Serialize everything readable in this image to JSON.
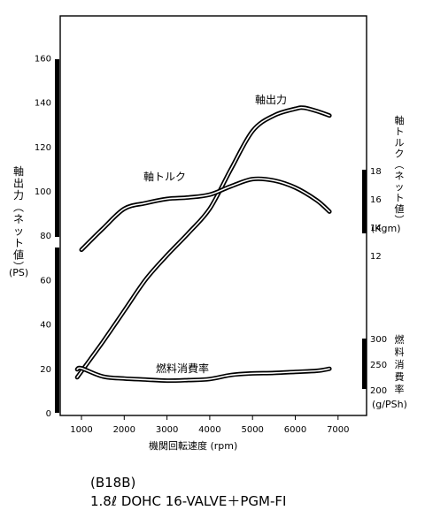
{
  "chart_data": {
    "type": "line",
    "x_label": "機関回転速度 (rpm)",
    "x_ticks": [
      1000,
      2000,
      3000,
      4000,
      5000,
      6000,
      7000
    ],
    "xlim": [
      500,
      7500
    ],
    "left_axis": {
      "label": "軸出力(ネット値)",
      "unit": "(PS)",
      "ticks": [
        0,
        20,
        40,
        60,
        80,
        100,
        120,
        140,
        160
      ],
      "ylim": [
        0,
        160
      ]
    },
    "right_axis_torque": {
      "label": "軸トルク(ネット値)",
      "unit": "(Kgm)",
      "ticks": [
        12,
        14,
        16,
        18
      ]
    },
    "right_axis_fuel": {
      "label": "燃料消費率",
      "unit": "(g/PSh)",
      "ticks": [
        200,
        250,
        300
      ]
    },
    "series": [
      {
        "name": "軸出力",
        "axis": "power_ps",
        "x": [
          900,
          1200,
          1500,
          2000,
          2500,
          3000,
          3500,
          4000,
          4500,
          5000,
          5500,
          6000,
          6200,
          6500,
          6800
        ],
        "y": [
          16,
          24,
          32,
          46,
          60,
          71,
          81,
          92,
          110,
          127,
          134,
          137,
          137.5,
          136,
          134
        ]
      },
      {
        "name": "軸トルク",
        "axis": "torque_kgm",
        "x": [
          1000,
          1500,
          2000,
          2500,
          3000,
          3500,
          4000,
          4500,
          5000,
          5500,
          6000,
          6500,
          6800
        ],
        "y": [
          12.4,
          13.9,
          15.3,
          15.7,
          16.0,
          16.1,
          16.3,
          16.9,
          17.4,
          17.3,
          16.8,
          15.9,
          15.1
        ]
      },
      {
        "name": "燃料消費率",
        "axis": "fuel_g_psh",
        "x": [
          900,
          1000,
          1500,
          2000,
          2500,
          3000,
          3500,
          4000,
          4500,
          5000,
          5500,
          6000,
          6500,
          6800
        ],
        "y": [
          240,
          242,
          226,
          222,
          220,
          218,
          219,
          221,
          229,
          232,
          233,
          235,
          237,
          241
        ]
      }
    ]
  },
  "caption": {
    "line1": "(B18B)",
    "line2": "1.8ℓ  DOHC 16-VALVE＋PGM-FI"
  }
}
